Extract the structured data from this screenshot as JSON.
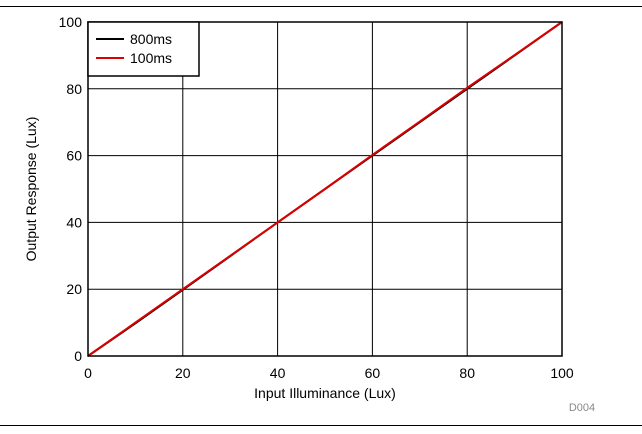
{
  "chart_data": {
    "type": "line",
    "xlabel": "Input Illuminance (Lux)",
    "ylabel": "Output Response (Lux)",
    "xlim": [
      0,
      100
    ],
    "ylim": [
      0,
      100
    ],
    "xticks": [
      "0",
      "20",
      "40",
      "60",
      "80",
      "100"
    ],
    "yticks": [
      "0",
      "20",
      "40",
      "60",
      "80",
      "100"
    ],
    "grid": true,
    "legend_position": "top-left",
    "series": [
      {
        "name": "800ms",
        "color": "#000000",
        "x": [
          0,
          10,
          20,
          30,
          40,
          50,
          60,
          70,
          80,
          90,
          100
        ],
        "y": [
          0,
          9.8,
          19.8,
          29.9,
          40,
          50,
          60,
          70,
          80,
          90,
          100
        ]
      },
      {
        "name": "100ms",
        "color": "#dd0000",
        "x": [
          0,
          10,
          20,
          30,
          40,
          50,
          60,
          70,
          80,
          90,
          100
        ],
        "y": [
          0,
          10,
          20,
          30,
          40,
          50,
          60.2,
          70.2,
          80.3,
          90.1,
          100
        ]
      }
    ],
    "figure_id": "D004"
  }
}
